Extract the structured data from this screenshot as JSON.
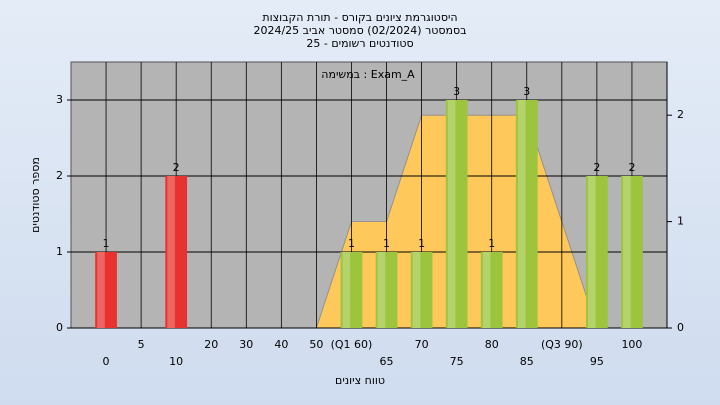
{
  "chart_data": {
    "type": "bar",
    "title": [
      "היסטוגרמת ציונים בקורס - תורת הקבוצות",
      "בסמסטר  (02/2024)  סמסטר אביב 2024/25",
      "סטודנטים רשומים - 25"
    ],
    "annotation": "במשימה : Exam_A",
    "x_label": "טווח ציונים",
    "y_label": "מספר סטודנטים",
    "categories": [
      "0",
      "5",
      "10",
      "20",
      "30",
      "40",
      "50",
      "(Q1 60)",
      "65",
      "70",
      "75",
      "80",
      "85",
      "(Q3 90)",
      "95",
      "100"
    ],
    "series": [
      {
        "name": "count",
        "type": "bar",
        "values": [
          1,
          0,
          2,
          0,
          0,
          0,
          0,
          1,
          1,
          1,
          3,
          1,
          3,
          0,
          2,
          2
        ],
        "colors": [
          "#e8322f",
          "#e8322f",
          "#e8322f",
          "#e8322f",
          "#e8322f",
          "#e8322f",
          "#e8322f",
          "#9cc43c",
          "#9cc43c",
          "#9cc43c",
          "#9cc43c",
          "#9cc43c",
          "#9cc43c",
          "#9cc43c",
          "#9cc43c",
          "#9cc43c"
        ]
      },
      {
        "name": "distribution",
        "type": "area",
        "axis": "y2",
        "color": "#ffc85a",
        "values": [
          null,
          null,
          null,
          null,
          null,
          null,
          0,
          1,
          1,
          2,
          2,
          2,
          2,
          1,
          0,
          null
        ]
      }
    ],
    "ylim": [
      0,
      3.5
    ],
    "yticks": [
      0,
      1,
      2,
      3
    ],
    "y2lim": [
      0,
      2.5
    ],
    "y2ticks": [
      0,
      1,
      2
    ],
    "grid": true
  }
}
